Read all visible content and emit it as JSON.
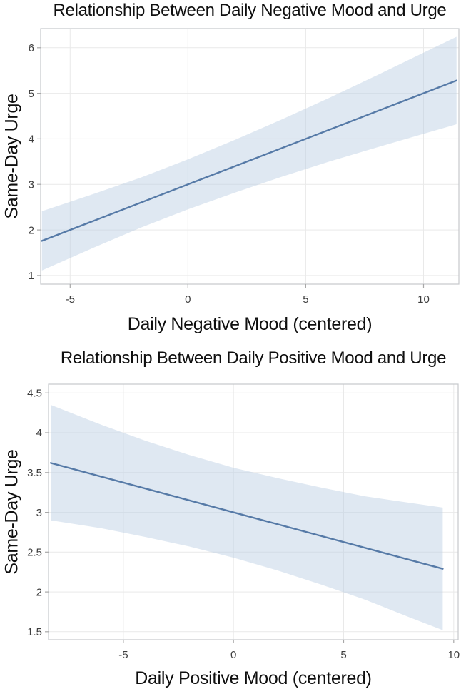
{
  "page": {
    "background": "#ffffff"
  },
  "colors": {
    "line": "#567aa7",
    "band": "#b9cbe3",
    "band_opacity": "0.45",
    "grid": "#e9e9e9",
    "border": "#c6c8cc",
    "tick": "#a8a8a8",
    "tick_text": "#3e3e3e",
    "label_text": "#101010"
  },
  "chart_data": [
    {
      "type": "line",
      "title": "Relationship Between Daily Negative Mood and Urge",
      "xlabel": "Daily Negative Mood (centered)",
      "ylabel": "Same-Day Urge",
      "x_ticks": [
        -5,
        0,
        5,
        10
      ],
      "y_ticks": [
        1,
        2,
        3,
        4,
        5,
        6
      ],
      "xlim": [
        -6.25,
        11.5
      ],
      "ylim": [
        0.81,
        6.42
      ],
      "grid": true,
      "legend_position": "none",
      "line": {
        "x": [
          -6.2,
          11.4
        ],
        "y": [
          1.76,
          5.28
        ],
        "slope": 0.2,
        "intercept": 3.0
      },
      "band": {
        "x": [
          -6.2,
          -4,
          -2,
          0,
          2,
          4,
          6,
          8,
          10,
          11.4
        ],
        "lower": [
          1.11,
          1.61,
          2.05,
          2.45,
          2.82,
          3.17,
          3.5,
          3.81,
          4.11,
          4.32
        ],
        "upper": [
          2.41,
          2.79,
          3.15,
          3.55,
          3.98,
          4.43,
          4.9,
          5.39,
          5.89,
          6.24
        ]
      }
    },
    {
      "type": "line",
      "title": "Relationship Between Daily Positive Mood and Urge",
      "xlabel": "Daily Positive Mood (centered)",
      "ylabel": "Same-Day Urge",
      "x_ticks": [
        -5,
        0,
        5,
        10
      ],
      "y_ticks": [
        1.5,
        2,
        2.5,
        3,
        3.5,
        4,
        4.5
      ],
      "xlim": [
        -8.4,
        10.2
      ],
      "ylim": [
        1.4,
        4.61
      ],
      "grid": true,
      "legend_position": "none",
      "line": {
        "x": [
          -8.3,
          9.5
        ],
        "y": [
          3.62,
          2.29
        ],
        "slope": -0.075,
        "intercept": 3.0
      },
      "band": {
        "x": [
          -8.3,
          -6,
          -4,
          -2,
          0,
          2,
          4,
          6,
          8,
          9.5
        ],
        "lower": [
          2.9,
          2.8,
          2.69,
          2.57,
          2.43,
          2.27,
          2.09,
          1.9,
          1.68,
          1.52
        ],
        "upper": [
          4.35,
          4.1,
          3.9,
          3.72,
          3.56,
          3.43,
          3.31,
          3.2,
          3.12,
          3.06
        ]
      }
    }
  ]
}
